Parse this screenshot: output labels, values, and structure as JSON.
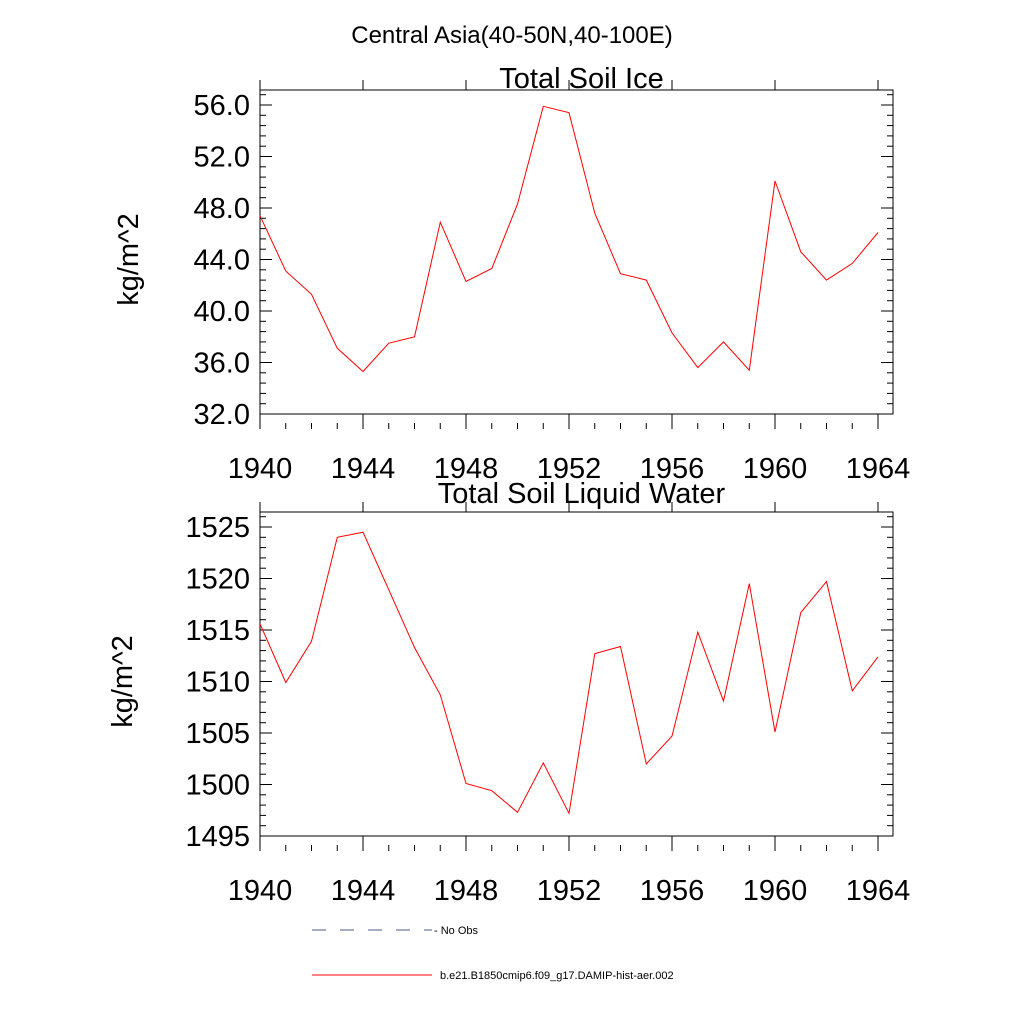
{
  "title": "Central Asia(40-50N,40-100E)",
  "colors": {
    "model": "#ff0000",
    "obs": "#4a5a8c"
  },
  "legend": [
    {
      "label": "No Obs",
      "style": "dashed",
      "color": "#4a5a8c"
    },
    {
      "label": "b.e21.B1850cmip6.f09_g17.DAMIP-hist-aer.002",
      "style": "solid",
      "color": "#ff0000"
    }
  ],
  "chart_data": [
    {
      "type": "line",
      "title": "Total Soil Ice",
      "xlabel": "",
      "ylabel": "kg/m^2",
      "xlim": [
        1940,
        1964
      ],
      "ylim": [
        32,
        56
      ],
      "xticks": [
        1940,
        1944,
        1948,
        1952,
        1956,
        1960,
        1964
      ],
      "xtick_labels": [
        "1940",
        "1944",
        "1948",
        "1952",
        "1956",
        "1960",
        "1964"
      ],
      "yticks": [
        32,
        36,
        40,
        44,
        48,
        52,
        56
      ],
      "ytick_labels": [
        "32.0",
        "36.0",
        "40.0",
        "44.0",
        "48.0",
        "52.0",
        "56.0"
      ],
      "x": [
        1940,
        1941,
        1942,
        1943,
        1944,
        1945,
        1946,
        1947,
        1948,
        1949,
        1950,
        1951,
        1952,
        1953,
        1954,
        1955,
        1956,
        1957,
        1958,
        1959,
        1960,
        1961,
        1962,
        1963,
        1964
      ],
      "series": [
        {
          "name": "b.e21.B1850cmip6.f09_g17.DAMIP-hist-aer.002",
          "values": [
            47.4,
            43.1,
            41.3,
            37.1,
            35.3,
            37.5,
            38.0,
            46.9,
            42.3,
            43.3,
            48.3,
            55.9,
            55.4,
            47.6,
            42.9,
            42.4,
            38.3,
            35.6,
            37.6,
            35.4,
            50.1,
            44.6,
            42.4,
            43.7,
            46.1
          ]
        }
      ]
    },
    {
      "type": "line",
      "title": "Total Soil Liquid Water",
      "xlabel": "",
      "ylabel": "kg/m^2",
      "xlim": [
        1940,
        1964
      ],
      "ylim": [
        1495,
        1525
      ],
      "xticks": [
        1940,
        1944,
        1948,
        1952,
        1956,
        1960,
        1964
      ],
      "xtick_labels": [
        "1940",
        "1944",
        "1948",
        "1952",
        "1956",
        "1960",
        "1964"
      ],
      "yticks": [
        1495,
        1500,
        1505,
        1510,
        1515,
        1520,
        1525
      ],
      "ytick_labels": [
        "1495",
        "1500",
        "1505",
        "1510",
        "1515",
        "1520",
        "1525"
      ],
      "x": [
        1940,
        1941,
        1942,
        1943,
        1944,
        1945,
        1946,
        1947,
        1948,
        1949,
        1950,
        1951,
        1952,
        1953,
        1954,
        1955,
        1956,
        1957,
        1958,
        1959,
        1960,
        1961,
        1962,
        1963,
        1964
      ],
      "series": [
        {
          "name": "b.e21.B1850cmip6.f09_g17.DAMIP-hist-aer.002",
          "values": [
            1515.6,
            1509.9,
            1513.9,
            1524.0,
            1524.5,
            1518.9,
            1513.3,
            1508.7,
            1500.1,
            1499.4,
            1497.3,
            1502.1,
            1497.2,
            1512.7,
            1513.4,
            1502.0,
            1504.7,
            1514.8,
            1508.1,
            1519.5,
            1505.1,
            1516.7,
            1519.7,
            1509.1,
            1512.4
          ]
        }
      ]
    }
  ]
}
